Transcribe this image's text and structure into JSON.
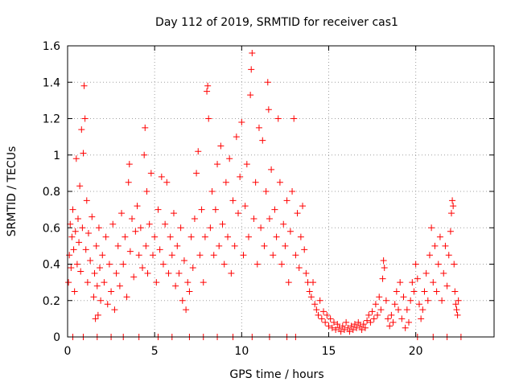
{
  "chart_data": {
    "type": "scatter",
    "title": "Day 112 of 2019, SRMTID for receiver cas1",
    "xlabel": "GPS time / hours",
    "ylabel": "SRMTID / TECUs",
    "xlim": [
      0,
      24.5
    ],
    "ylim": [
      0,
      1.6
    ],
    "xticks": [
      0,
      5,
      10,
      15,
      20
    ],
    "xtick_labels": [
      "0",
      "5",
      "10",
      "15",
      "20"
    ],
    "yticks": [
      0,
      0.2,
      0.4,
      0.6,
      0.8,
      1.0,
      1.2,
      1.4,
      1.6
    ],
    "ytick_labels": [
      "0",
      "0.2",
      "0.4",
      "0.6",
      "0.8",
      "1",
      "1.2",
      "1.4",
      "1.6"
    ],
    "grid": true,
    "marker": "plus",
    "point_color": "#ff0000",
    "series": [
      {
        "name": "SRMTID",
        "points": [
          [
            0.05,
            0.3
          ],
          [
            0.1,
            0.45
          ],
          [
            0.15,
            0.62
          ],
          [
            0.2,
            0.38
          ],
          [
            0.25,
            0.55
          ],
          [
            0.3,
            0.7
          ],
          [
            0.35,
            0.48
          ],
          [
            0.4,
            0.25
          ],
          [
            0.45,
            0.58
          ],
          [
            0.5,
            0.98
          ],
          [
            0.55,
            0.4
          ],
          [
            0.6,
            0.65
          ],
          [
            0.65,
            0.52
          ],
          [
            0.7,
            0.83
          ],
          [
            0.75,
            0.36
          ],
          [
            0.8,
            1.14
          ],
          [
            0.85,
            0.6
          ],
          [
            0.9,
            1.01
          ],
          [
            0.95,
            1.38
          ],
          [
            1.0,
            1.2
          ],
          [
            1.05,
            0.48
          ],
          [
            1.1,
            0.75
          ],
          [
            1.15,
            0.3
          ],
          [
            1.2,
            0.57
          ],
          [
            1.3,
            0.42
          ],
          [
            1.4,
            0.66
          ],
          [
            1.5,
            0.22
          ],
          [
            1.55,
            0.35
          ],
          [
            1.6,
            0.1
          ],
          [
            1.65,
            0.5
          ],
          [
            1.7,
            0.28
          ],
          [
            1.75,
            0.12
          ],
          [
            1.8,
            0.6
          ],
          [
            1.85,
            0.38
          ],
          [
            1.9,
            0.2
          ],
          [
            2.0,
            0.45
          ],
          [
            2.1,
            0.3
          ],
          [
            2.2,
            0.55
          ],
          [
            2.3,
            0.18
          ],
          [
            2.4,
            0.4
          ],
          [
            2.5,
            0.25
          ],
          [
            2.6,
            0.62
          ],
          [
            2.7,
            0.15
          ],
          [
            2.8,
            0.35
          ],
          [
            2.9,
            0.5
          ],
          [
            3.0,
            0.28
          ],
          [
            3.1,
            0.68
          ],
          [
            3.2,
            0.4
          ],
          [
            3.3,
            0.55
          ],
          [
            3.4,
            0.22
          ],
          [
            3.5,
            0.85
          ],
          [
            3.55,
            0.95
          ],
          [
            3.6,
            0.47
          ],
          [
            3.7,
            0.65
          ],
          [
            3.8,
            0.33
          ],
          [
            3.9,
            0.58
          ],
          [
            4.0,
            0.72
          ],
          [
            4.1,
            0.45
          ],
          [
            4.2,
            0.6
          ],
          [
            4.3,
            0.38
          ],
          [
            4.4,
            1.0
          ],
          [
            4.45,
            1.15
          ],
          [
            4.5,
            0.5
          ],
          [
            4.55,
            0.8
          ],
          [
            4.6,
            0.35
          ],
          [
            4.7,
            0.62
          ],
          [
            4.8,
            0.9
          ],
          [
            4.9,
            0.45
          ],
          [
            5.0,
            0.55
          ],
          [
            5.1,
            0.3
          ],
          [
            5.2,
            0.7
          ],
          [
            5.3,
            0.48
          ],
          [
            5.4,
            0.88
          ],
          [
            5.5,
            0.4
          ],
          [
            5.6,
            0.62
          ],
          [
            5.7,
            0.85
          ],
          [
            5.8,
            0.35
          ],
          [
            5.9,
            0.55
          ],
          [
            6.0,
            0.45
          ],
          [
            6.1,
            0.68
          ],
          [
            6.2,
            0.28
          ],
          [
            6.3,
            0.5
          ],
          [
            6.4,
            0.35
          ],
          [
            6.5,
            0.6
          ],
          [
            6.6,
            0.2
          ],
          [
            6.7,
            0.42
          ],
          [
            6.8,
            0.15
          ],
          [
            6.9,
            0.3
          ],
          [
            7.0,
            0.25
          ],
          [
            7.1,
            0.55
          ],
          [
            7.2,
            0.38
          ],
          [
            7.3,
            0.65
          ],
          [
            7.4,
            0.9
          ],
          [
            7.5,
            1.02
          ],
          [
            7.6,
            0.45
          ],
          [
            7.7,
            0.7
          ],
          [
            7.8,
            0.3
          ],
          [
            7.9,
            0.55
          ],
          [
            8.0,
            1.35
          ],
          [
            8.05,
            1.38
          ],
          [
            8.1,
            1.2
          ],
          [
            8.2,
            0.6
          ],
          [
            8.3,
            0.8
          ],
          [
            8.4,
            0.45
          ],
          [
            8.5,
            0.7
          ],
          [
            8.6,
            0.95
          ],
          [
            8.7,
            0.5
          ],
          [
            8.8,
            1.05
          ],
          [
            8.9,
            0.62
          ],
          [
            9.0,
            0.4
          ],
          [
            9.1,
            0.85
          ],
          [
            9.2,
            0.55
          ],
          [
            9.3,
            0.98
          ],
          [
            9.4,
            0.35
          ],
          [
            9.5,
            0.75
          ],
          [
            9.6,
            0.5
          ],
          [
            9.7,
            1.1
          ],
          [
            9.8,
            0.68
          ],
          [
            9.9,
            0.88
          ],
          [
            10.0,
            1.18
          ],
          [
            10.1,
            0.45
          ],
          [
            10.2,
            0.72
          ],
          [
            10.3,
            0.95
          ],
          [
            10.4,
            0.55
          ],
          [
            10.5,
            1.33
          ],
          [
            10.55,
            1.47
          ],
          [
            10.6,
            1.56
          ],
          [
            10.7,
            0.65
          ],
          [
            10.8,
            0.85
          ],
          [
            10.9,
            0.4
          ],
          [
            11.0,
            1.15
          ],
          [
            11.1,
            0.6
          ],
          [
            11.2,
            1.08
          ],
          [
            11.3,
            0.5
          ],
          [
            11.4,
            0.8
          ],
          [
            11.5,
            1.4
          ],
          [
            11.55,
            1.25
          ],
          [
            11.6,
            0.65
          ],
          [
            11.7,
            0.92
          ],
          [
            11.8,
            0.45
          ],
          [
            11.9,
            0.7
          ],
          [
            12.0,
            0.55
          ],
          [
            12.1,
            1.2
          ],
          [
            12.2,
            0.85
          ],
          [
            12.3,
            0.4
          ],
          [
            12.4,
            0.62
          ],
          [
            12.5,
            0.5
          ],
          [
            12.6,
            0.75
          ],
          [
            12.7,
            0.3
          ],
          [
            12.8,
            0.58
          ],
          [
            12.9,
            0.8
          ],
          [
            13.0,
            1.2
          ],
          [
            13.1,
            0.45
          ],
          [
            13.2,
            0.68
          ],
          [
            13.3,
            0.38
          ],
          [
            13.4,
            0.55
          ],
          [
            13.5,
            0.72
          ],
          [
            13.6,
            0.48
          ],
          [
            13.7,
            0.35
          ],
          [
            13.8,
            0.3
          ],
          [
            13.9,
            0.25
          ],
          [
            14.0,
            0.22
          ],
          [
            14.1,
            0.3
          ],
          [
            14.2,
            0.18
          ],
          [
            14.3,
            0.15
          ],
          [
            14.4,
            0.12
          ],
          [
            14.5,
            0.2
          ],
          [
            14.6,
            0.1
          ],
          [
            14.7,
            0.14
          ],
          [
            14.8,
            0.08
          ],
          [
            14.9,
            0.12
          ],
          [
            15.0,
            0.06
          ],
          [
            15.1,
            0.1
          ],
          [
            15.2,
            0.05
          ],
          [
            15.3,
            0.08
          ],
          [
            15.4,
            0.04
          ],
          [
            15.5,
            0.07
          ],
          [
            15.6,
            0.05
          ],
          [
            15.7,
            0.03
          ],
          [
            15.8,
            0.06
          ],
          [
            15.9,
            0.04
          ],
          [
            16.0,
            0.08
          ],
          [
            16.1,
            0.05
          ],
          [
            16.2,
            0.03
          ],
          [
            16.3,
            0.06
          ],
          [
            16.4,
            0.04
          ],
          [
            16.5,
            0.07
          ],
          [
            16.6,
            0.05
          ],
          [
            16.7,
            0.08
          ],
          [
            16.8,
            0.06
          ],
          [
            16.9,
            0.04
          ],
          [
            17.0,
            0.07
          ],
          [
            17.1,
            0.05
          ],
          [
            17.2,
            0.09
          ],
          [
            17.3,
            0.12
          ],
          [
            17.4,
            0.08
          ],
          [
            17.5,
            0.14
          ],
          [
            17.6,
            0.1
          ],
          [
            17.7,
            0.18
          ],
          [
            17.8,
            0.12
          ],
          [
            17.9,
            0.22
          ],
          [
            18.0,
            0.15
          ],
          [
            18.1,
            0.32
          ],
          [
            18.15,
            0.42
          ],
          [
            18.2,
            0.38
          ],
          [
            18.3,
            0.2
          ],
          [
            18.4,
            0.1
          ],
          [
            18.5,
            0.06
          ],
          [
            18.6,
            0.12
          ],
          [
            18.7,
            0.08
          ],
          [
            18.8,
            0.18
          ],
          [
            18.9,
            0.25
          ],
          [
            19.0,
            0.15
          ],
          [
            19.1,
            0.3
          ],
          [
            19.2,
            0.1
          ],
          [
            19.3,
            0.22
          ],
          [
            19.4,
            0.05
          ],
          [
            19.5,
            0.15
          ],
          [
            19.6,
            0.08
          ],
          [
            19.7,
            0.2
          ],
          [
            19.8,
            0.3
          ],
          [
            19.9,
            0.25
          ],
          [
            20.0,
            0.4
          ],
          [
            20.1,
            0.32
          ],
          [
            20.2,
            0.18
          ],
          [
            20.3,
            0.1
          ],
          [
            20.4,
            0.15
          ],
          [
            20.5,
            0.25
          ],
          [
            20.6,
            0.35
          ],
          [
            20.7,
            0.2
          ],
          [
            20.8,
            0.45
          ],
          [
            20.9,
            0.6
          ],
          [
            21.0,
            0.3
          ],
          [
            21.1,
            0.5
          ],
          [
            21.2,
            0.25
          ],
          [
            21.3,
            0.4
          ],
          [
            21.4,
            0.55
          ],
          [
            21.5,
            0.2
          ],
          [
            21.6,
            0.35
          ],
          [
            21.7,
            0.5
          ],
          [
            21.8,
            0.28
          ],
          [
            21.9,
            0.45
          ],
          [
            22.0,
            0.58
          ],
          [
            22.05,
            0.68
          ],
          [
            22.1,
            0.75
          ],
          [
            22.15,
            0.72
          ],
          [
            22.2,
            0.4
          ],
          [
            22.25,
            0.25
          ],
          [
            22.3,
            0.18
          ],
          [
            22.35,
            0.15
          ],
          [
            22.4,
            0.12
          ],
          [
            22.45,
            0.2
          ],
          [
            0.3,
            0.0
          ],
          [
            0.9,
            0.0
          ],
          [
            1.7,
            0.0
          ],
          [
            2.5,
            0.0
          ],
          [
            3.2,
            0.0
          ],
          [
            4.1,
            0.0
          ],
          [
            5.2,
            0.0
          ],
          [
            6.0,
            0.0
          ],
          [
            7.0,
            0.0
          ],
          [
            7.8,
            0.0
          ],
          [
            8.6,
            0.0
          ],
          [
            9.5,
            0.0
          ],
          [
            10.6,
            0.0
          ],
          [
            11.6,
            0.0
          ],
          [
            12.6,
            0.0
          ],
          [
            13.1,
            0.0
          ],
          [
            20.1,
            0.0
          ],
          [
            21.0,
            0.0
          ],
          [
            21.8,
            0.0
          ],
          [
            22.6,
            0.0
          ]
        ]
      }
    ]
  }
}
